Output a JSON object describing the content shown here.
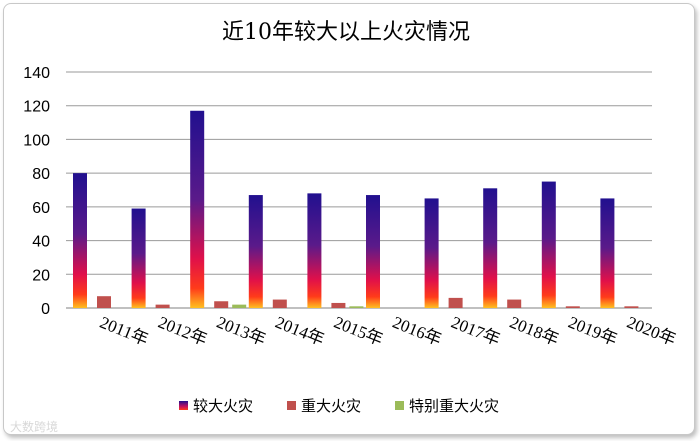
{
  "chart_data": {
    "type": "bar",
    "title": "近10年较大以上火灾情况",
    "categories": [
      "2011年",
      "2012年",
      "2013年",
      "2014年",
      "2015年",
      "2016年",
      "2017年",
      "2018年",
      "2019年",
      "2020年"
    ],
    "series": [
      {
        "name": "较大火灾",
        "values": [
          80,
          59,
          117,
          67,
          68,
          67,
          65,
          71,
          75,
          65
        ],
        "color": "#2b1a9a"
      },
      {
        "name": "重大火灾",
        "values": [
          7,
          2,
          4,
          5,
          3,
          0,
          6,
          5,
          1,
          1
        ],
        "color": "#c0504d"
      },
      {
        "name": "特别重大火灾",
        "values": [
          0,
          0,
          2,
          0,
          1,
          0,
          0,
          0,
          0,
          0
        ],
        "color": "#9bbb59"
      }
    ],
    "yticks": [
      "0",
      "20",
      "40",
      "60",
      "80",
      "100",
      "120",
      "140"
    ],
    "ylim": [
      0,
      140
    ],
    "grid": true,
    "legend_position": "bottom"
  },
  "watermark": "大数跨境"
}
